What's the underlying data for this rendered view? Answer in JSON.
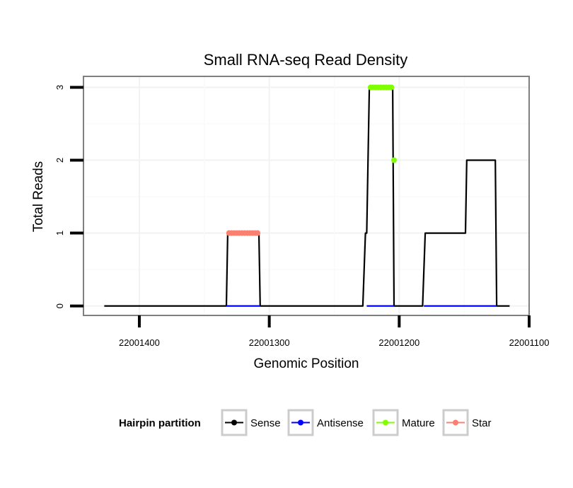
{
  "chart_data": {
    "type": "line",
    "title": "Small RNA-seq Read Density",
    "xlabel": "Genomic Position",
    "ylabel": "Total Reads",
    "x_reversed": true,
    "xlim": [
      22001443,
      22001100
    ],
    "ylim": [
      -0.13,
      3.15
    ],
    "x_ticks": [
      22001400,
      22001300,
      22001200,
      22001100
    ],
    "x_tick_labels": [
      "22001400",
      "22001300",
      "22001200",
      "22001100"
    ],
    "y_ticks": [
      0,
      1,
      2,
      3
    ],
    "y_tick_labels": [
      "0",
      "1",
      "2",
      "3"
    ],
    "grid": true,
    "legend": {
      "title": "Hairpin partition",
      "placement": "bottom",
      "entries": [
        {
          "name": "Sense",
          "color": "#000000"
        },
        {
          "name": "Antisense",
          "color": "#0000ff"
        },
        {
          "name": "Mature",
          "color": "#7fff00"
        },
        {
          "name": "Star",
          "color": "#fa8072"
        }
      ]
    },
    "series": [
      {
        "name": "Sense",
        "kind": "line",
        "color": "#000000",
        "x": [
          22001427,
          22001333,
          22001332,
          22001308,
          22001307,
          22001228,
          22001226,
          22001225,
          22001223,
          22001205,
          22001204,
          22001182,
          22001180,
          22001149,
          22001148,
          22001126,
          22001125,
          22001115
        ],
        "y": [
          0,
          0,
          1,
          1,
          0,
          0,
          1,
          1,
          3,
          3,
          0,
          0,
          1,
          1,
          2,
          2,
          0,
          0
        ]
      },
      {
        "name": "Antisense",
        "kind": "line",
        "color": "#0000ff",
        "segments": [
          {
            "x": [
              22001333,
              22001307
            ],
            "y": [
              0,
              0
            ]
          },
          {
            "x": [
              22001225,
              22001204
            ],
            "y": [
              0,
              0
            ]
          },
          {
            "x": [
              22001181,
              22001125
            ],
            "y": [
              0,
              0
            ]
          }
        ]
      },
      {
        "name": "Mature",
        "kind": "points",
        "color": "#7fff00",
        "x": [
          22001222,
          22001220,
          22001218,
          22001216,
          22001214,
          22001212,
          22001210,
          22001208,
          22001206,
          22001204
        ],
        "y": [
          3,
          3,
          3,
          3,
          3,
          3,
          3,
          3,
          3,
          2
        ]
      },
      {
        "name": "Star",
        "kind": "points",
        "color": "#fa8072",
        "x": [
          22001331,
          22001329,
          22001327,
          22001325,
          22001323,
          22001321,
          22001319,
          22001317,
          22001315,
          22001313,
          22001311,
          22001309
        ],
        "y": [
          1,
          1,
          1,
          1,
          1,
          1,
          1,
          1,
          1,
          1,
          1,
          1
        ]
      }
    ]
  }
}
